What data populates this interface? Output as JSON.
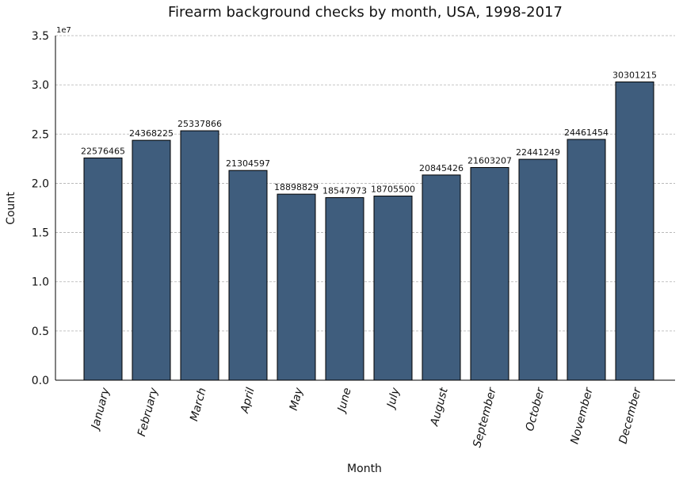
{
  "chart_data": {
    "type": "bar",
    "title": "Firearm background checks by month, USA, 1998-2017",
    "xlabel": "Month",
    "ylabel": "Count",
    "y_multiplier_label": "1e7",
    "y_multiplier": 10000000,
    "ylim": [
      0,
      3.5
    ],
    "yticks": [
      "0.0",
      "0.5",
      "1.0",
      "1.5",
      "2.0",
      "2.5",
      "3.0",
      "3.5"
    ],
    "grid": "horizontal dashed",
    "categories": [
      "January",
      "February",
      "March",
      "April",
      "May",
      "June",
      "July",
      "August",
      "September",
      "October",
      "November",
      "December"
    ],
    "values": [
      22576465,
      24368225,
      25337866,
      21304597,
      18898829,
      18547973,
      18705500,
      20845426,
      21603207,
      22441249,
      24461454,
      30301215
    ],
    "bar_color": "#3f5d7d",
    "bar_edge_color": "#000000"
  }
}
